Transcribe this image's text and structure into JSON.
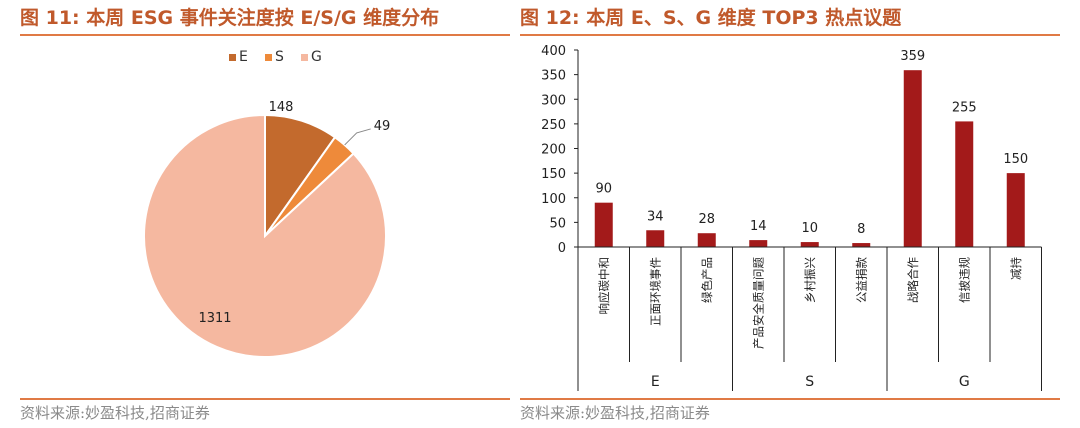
{
  "left_title": "图 11:  本周 ESG 事件关注度按 E/S/G 维度分布",
  "right_title": "图 12:   本周 E、S、G 维度 TOP3 热点议题",
  "left_source": "资料来源:妙盈科技,招商证券",
  "right_source": "资料来源:妙盈科技,招商证券",
  "colors": {
    "accent": "#c0592b",
    "E": "#c36a2d",
    "S": "#ee8a3a",
    "G": "#f5b8a0",
    "bar": "#a31a1a"
  },
  "chart_data": [
    {
      "type": "pie",
      "labels": [
        "E",
        "S",
        "G"
      ],
      "values": [
        148,
        49,
        1311
      ],
      "legend": "top-center"
    },
    {
      "type": "bar",
      "categories": [
        "响应碳中和",
        "正面环境事件",
        "绿色产品",
        "产品安全质量问题",
        "乡村振兴",
        "公益捐款",
        "战略合作",
        "信披违规",
        "减持"
      ],
      "values": [
        90,
        34,
        28,
        14,
        10,
        8,
        359,
        255,
        150
      ],
      "groups": [
        {
          "name": "E",
          "count": 3
        },
        {
          "name": "S",
          "count": 3
        },
        {
          "name": "G",
          "count": 3
        }
      ],
      "yticks": [
        0,
        50,
        100,
        150,
        200,
        250,
        300,
        350,
        400
      ],
      "ylim": [
        0,
        400
      ],
      "grid": false,
      "legend": "none"
    }
  ]
}
